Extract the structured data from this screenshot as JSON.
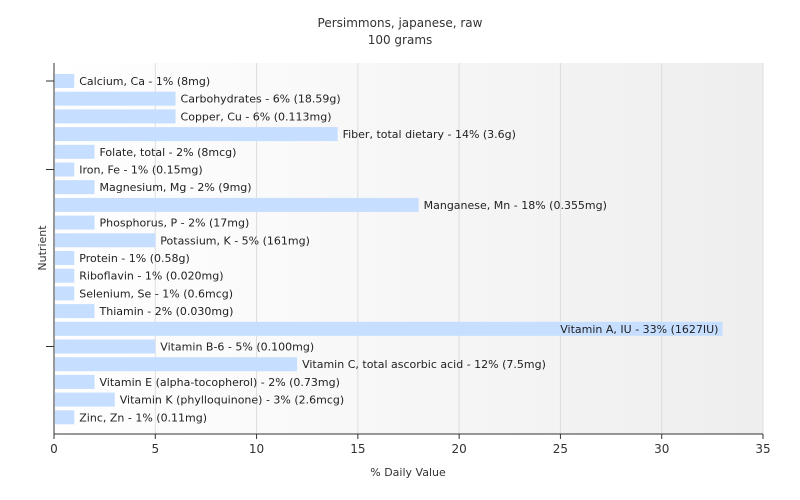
{
  "chart_data": {
    "type": "bar",
    "orientation": "horizontal",
    "title": "Persimmons, japanese, raw",
    "subtitle": "100 grams",
    "xlabel": "% Daily Value",
    "ylabel": "Nutrient",
    "xlim": [
      0,
      35
    ],
    "xticks": [
      "0",
      "5",
      "10",
      "15",
      "20",
      "25",
      "30",
      "35"
    ],
    "grid": true,
    "bar_color": "#c6deff",
    "categories": [
      "Calcium, Ca",
      "Carbohydrates",
      "Copper, Cu",
      "Fiber, total dietary",
      "Folate, total",
      "Iron, Fe",
      "Magnesium, Mg",
      "Manganese, Mn",
      "Phosphorus, P",
      "Potassium, K",
      "Protein",
      "Riboflavin",
      "Selenium, Se",
      "Thiamin",
      "Vitamin A, IU",
      "Vitamin B-6",
      "Vitamin C, total ascorbic acid",
      "Vitamin E (alpha-tocopherol)",
      "Vitamin K (phylloquinone)",
      "Zinc, Zn"
    ],
    "values": [
      1,
      6,
      6,
      14,
      2,
      1,
      2,
      18,
      2,
      5,
      1,
      1,
      1,
      2,
      33,
      5,
      12,
      2,
      3,
      1
    ],
    "labels": [
      "Calcium, Ca - 1% (8mg)",
      "Carbohydrates - 6% (18.59g)",
      "Copper, Cu - 6% (0.113mg)",
      "Fiber, total dietary - 14% (3.6g)",
      "Folate, total - 2% (8mcg)",
      "Iron, Fe - 1% (0.15mg)",
      "Magnesium, Mg - 2% (9mg)",
      "Manganese, Mn - 18% (0.355mg)",
      "Phosphorus, P - 2% (17mg)",
      "Potassium, K - 5% (161mg)",
      "Protein - 1% (0.58g)",
      "Riboflavin - 1% (0.020mg)",
      "Selenium, Se - 1% (0.6mcg)",
      "Thiamin - 2% (0.030mg)",
      "Vitamin A, IU - 33% (1627IU)",
      "Vitamin B-6 - 5% (0.100mg)",
      "Vitamin C, total ascorbic acid - 12% (7.5mg)",
      "Vitamin E (alpha-tocopherol) - 2% (0.73mg)",
      "Vitamin K (phylloquinone) - 3% (2.6mcg)",
      "Zinc, Zn - 1% (0.11mg)"
    ]
  }
}
